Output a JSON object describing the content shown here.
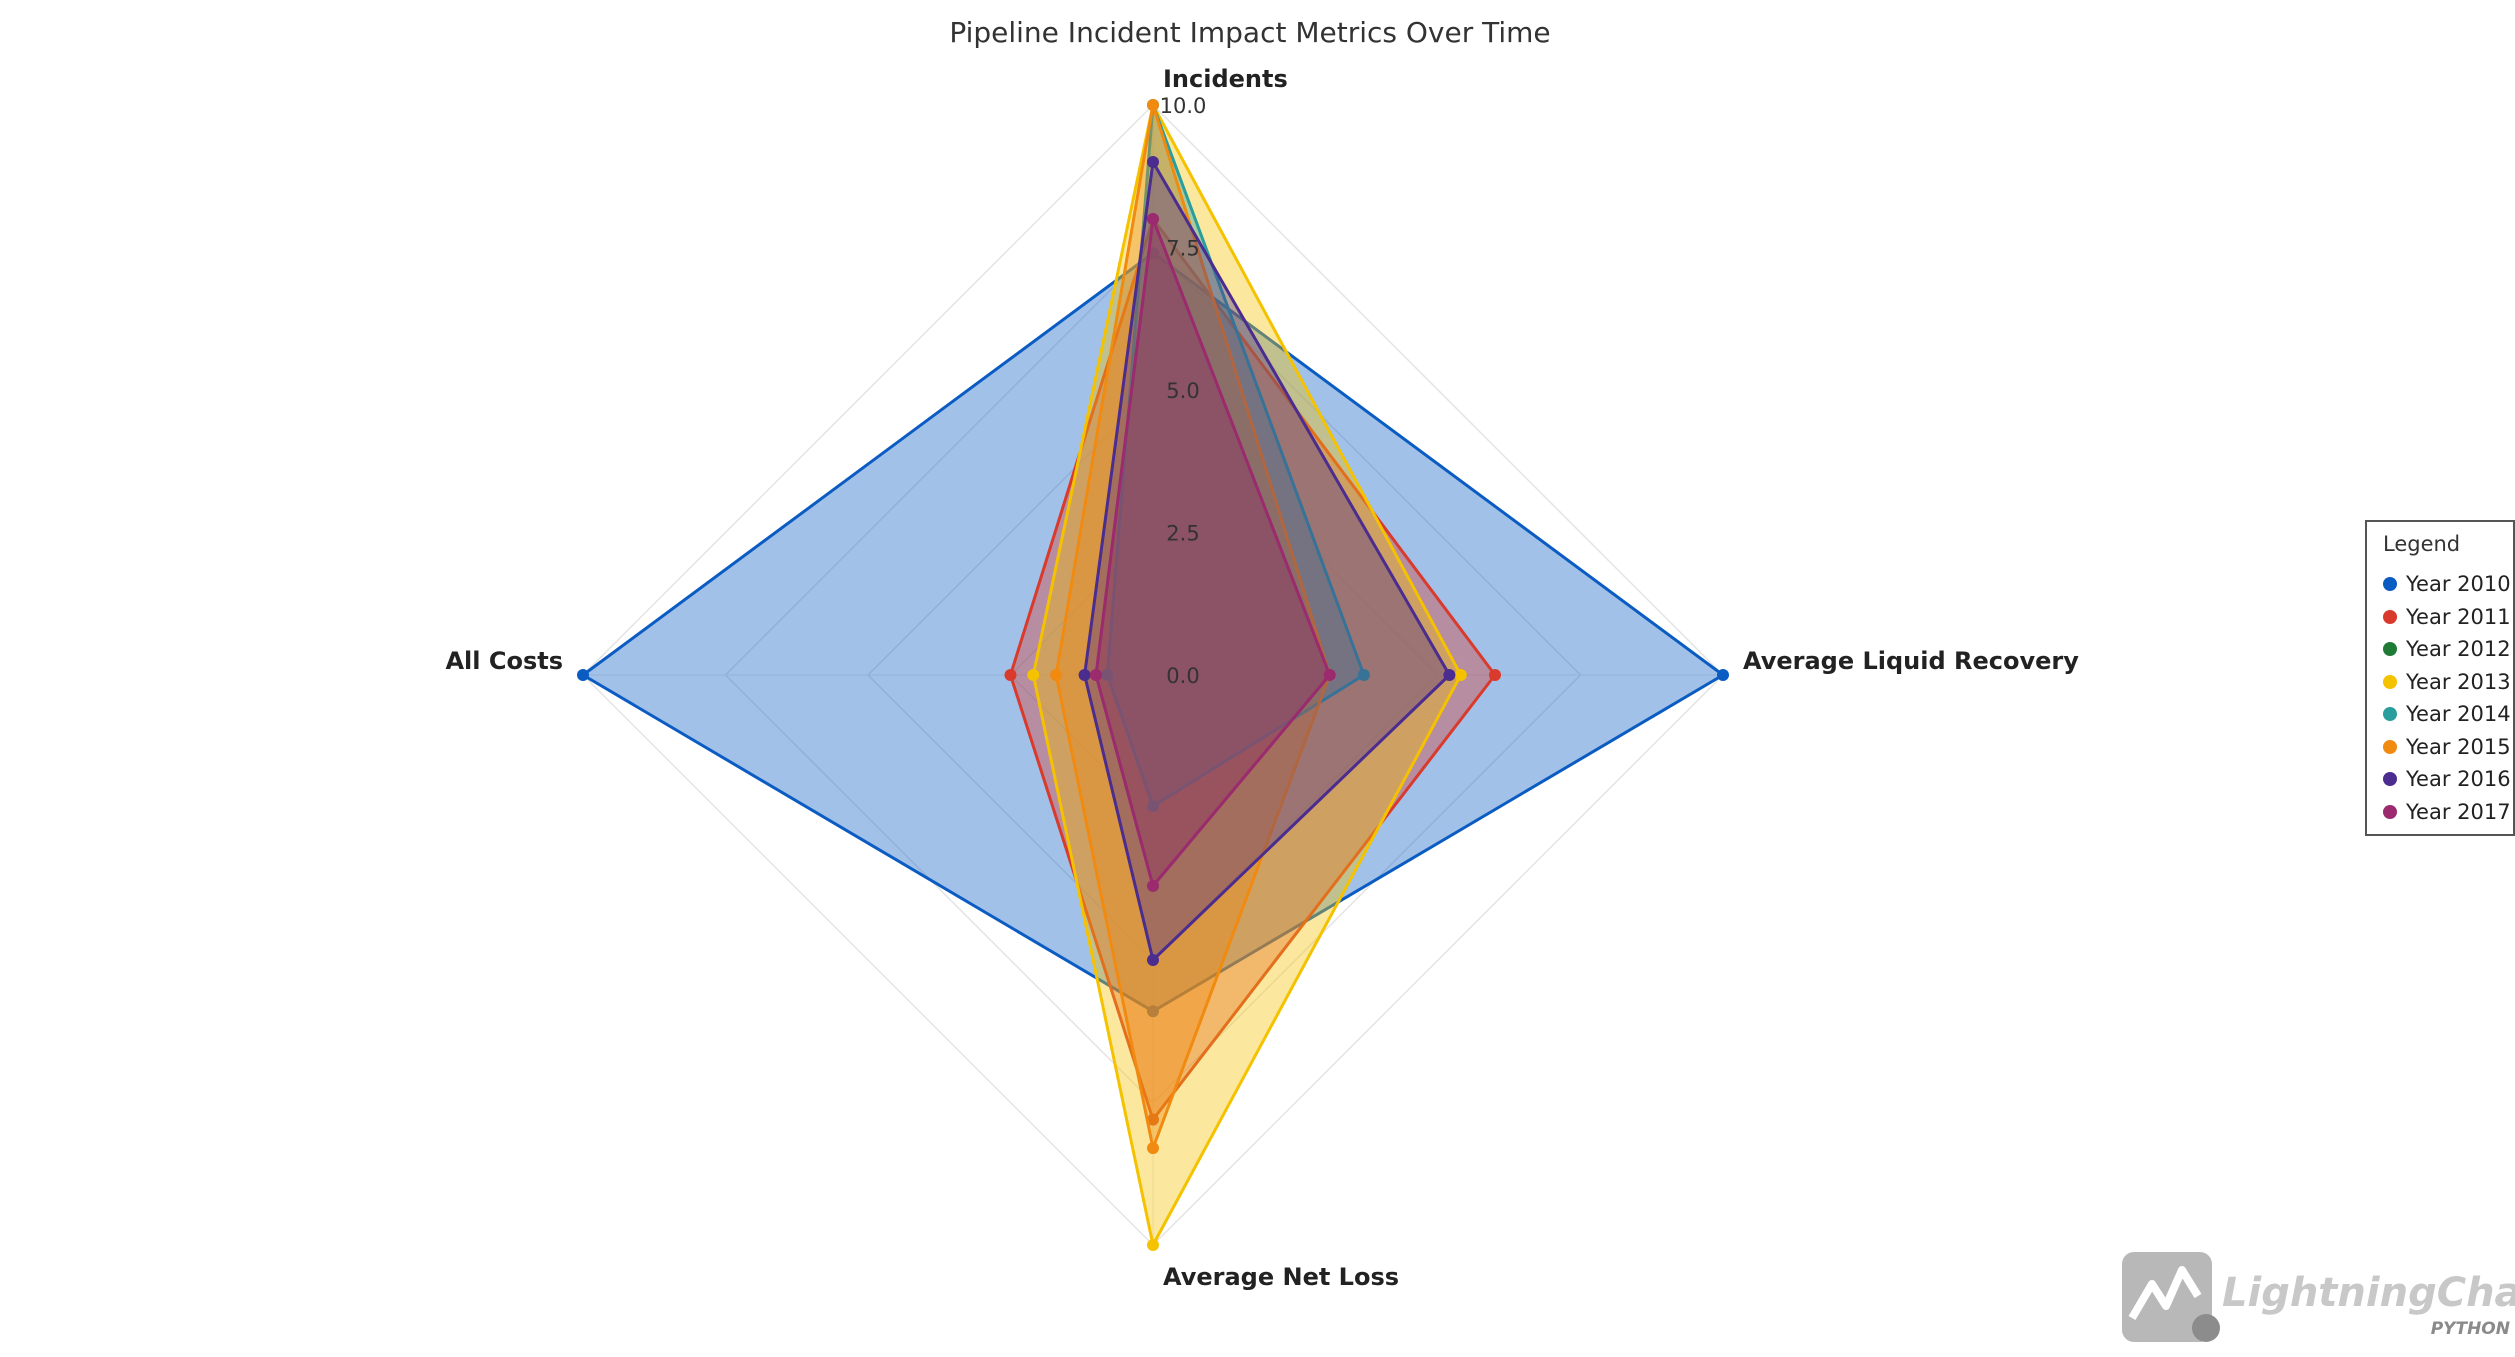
{
  "chart_data": {
    "type": "radar",
    "title": "Pipeline Incident Impact Metrics Over Time",
    "axes": [
      "Incidents",
      "Average Liquid Recovery",
      "Average Net Loss",
      "All Costs"
    ],
    "radial_range": [
      0,
      10
    ],
    "radial_ticks": [
      "0.0",
      "2.5",
      "5.0",
      "7.5",
      "10.0"
    ],
    "tick_values": [
      0,
      2.5,
      5,
      7.5,
      10
    ],
    "grid": true,
    "legend_title": "Legend",
    "legend_position": "right",
    "series": [
      {
        "name": "Year 2010",
        "color": "#0b5cc2",
        "values": [
          7.4,
          10.0,
          5.9,
          10.0
        ]
      },
      {
        "name": "Year 2011",
        "color": "#d93a2c",
        "values": [
          8.0,
          6.0,
          7.8,
          2.5
        ]
      },
      {
        "name": "Year 2012",
        "color": "#1f7a35",
        "values": [
          8.0,
          3.1,
          3.7,
          1.0
        ]
      },
      {
        "name": "Year 2013",
        "color": "#f5c200",
        "values": [
          10.0,
          5.4,
          10.0,
          2.1
        ]
      },
      {
        "name": "Year 2014",
        "color": "#2a9d9d",
        "values": [
          10.0,
          3.7,
          2.3,
          0.8
        ]
      },
      {
        "name": "Year 2015",
        "color": "#f08a10",
        "values": [
          10.0,
          3.1,
          8.3,
          1.7
        ]
      },
      {
        "name": "Year 2016",
        "color": "#4b2c8f",
        "values": [
          9.0,
          5.2,
          5.0,
          1.2
        ]
      },
      {
        "name": "Year 2017",
        "color": "#9b2a6e",
        "values": [
          8.0,
          3.1,
          3.7,
          1.0
        ]
      }
    ]
  },
  "branding": {
    "name": "LightningChart",
    "sub": "PYTHON",
    "colors": {
      "logo": "#b8b8b8",
      "logo_dark": "#8c8c8c"
    },
    "icon": "lightning-logo-icon"
  }
}
